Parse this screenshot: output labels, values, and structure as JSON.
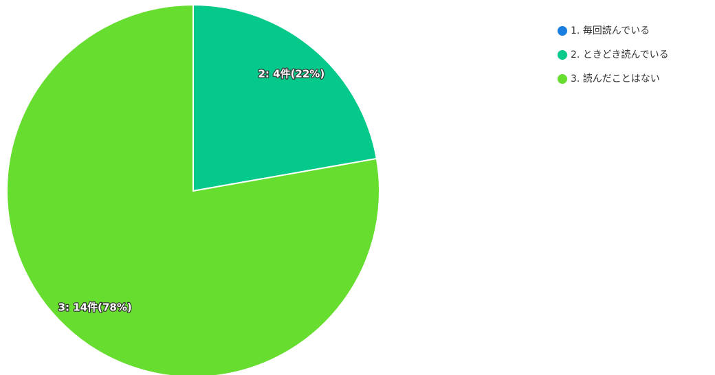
{
  "chart_data": {
    "type": "pie",
    "categories": [
      "1. 毎回読んでいる",
      "2. ときどき読んでいる",
      "3. 読んだことはない"
    ],
    "values": [
      0,
      4,
      14
    ],
    "value_labels": [
      null,
      "2: 4件(22%)",
      "3: 14件(78%)"
    ],
    "colors": [
      "#1a7de0",
      "#05c98a",
      "#66dd2f"
    ],
    "legend": "right"
  }
}
